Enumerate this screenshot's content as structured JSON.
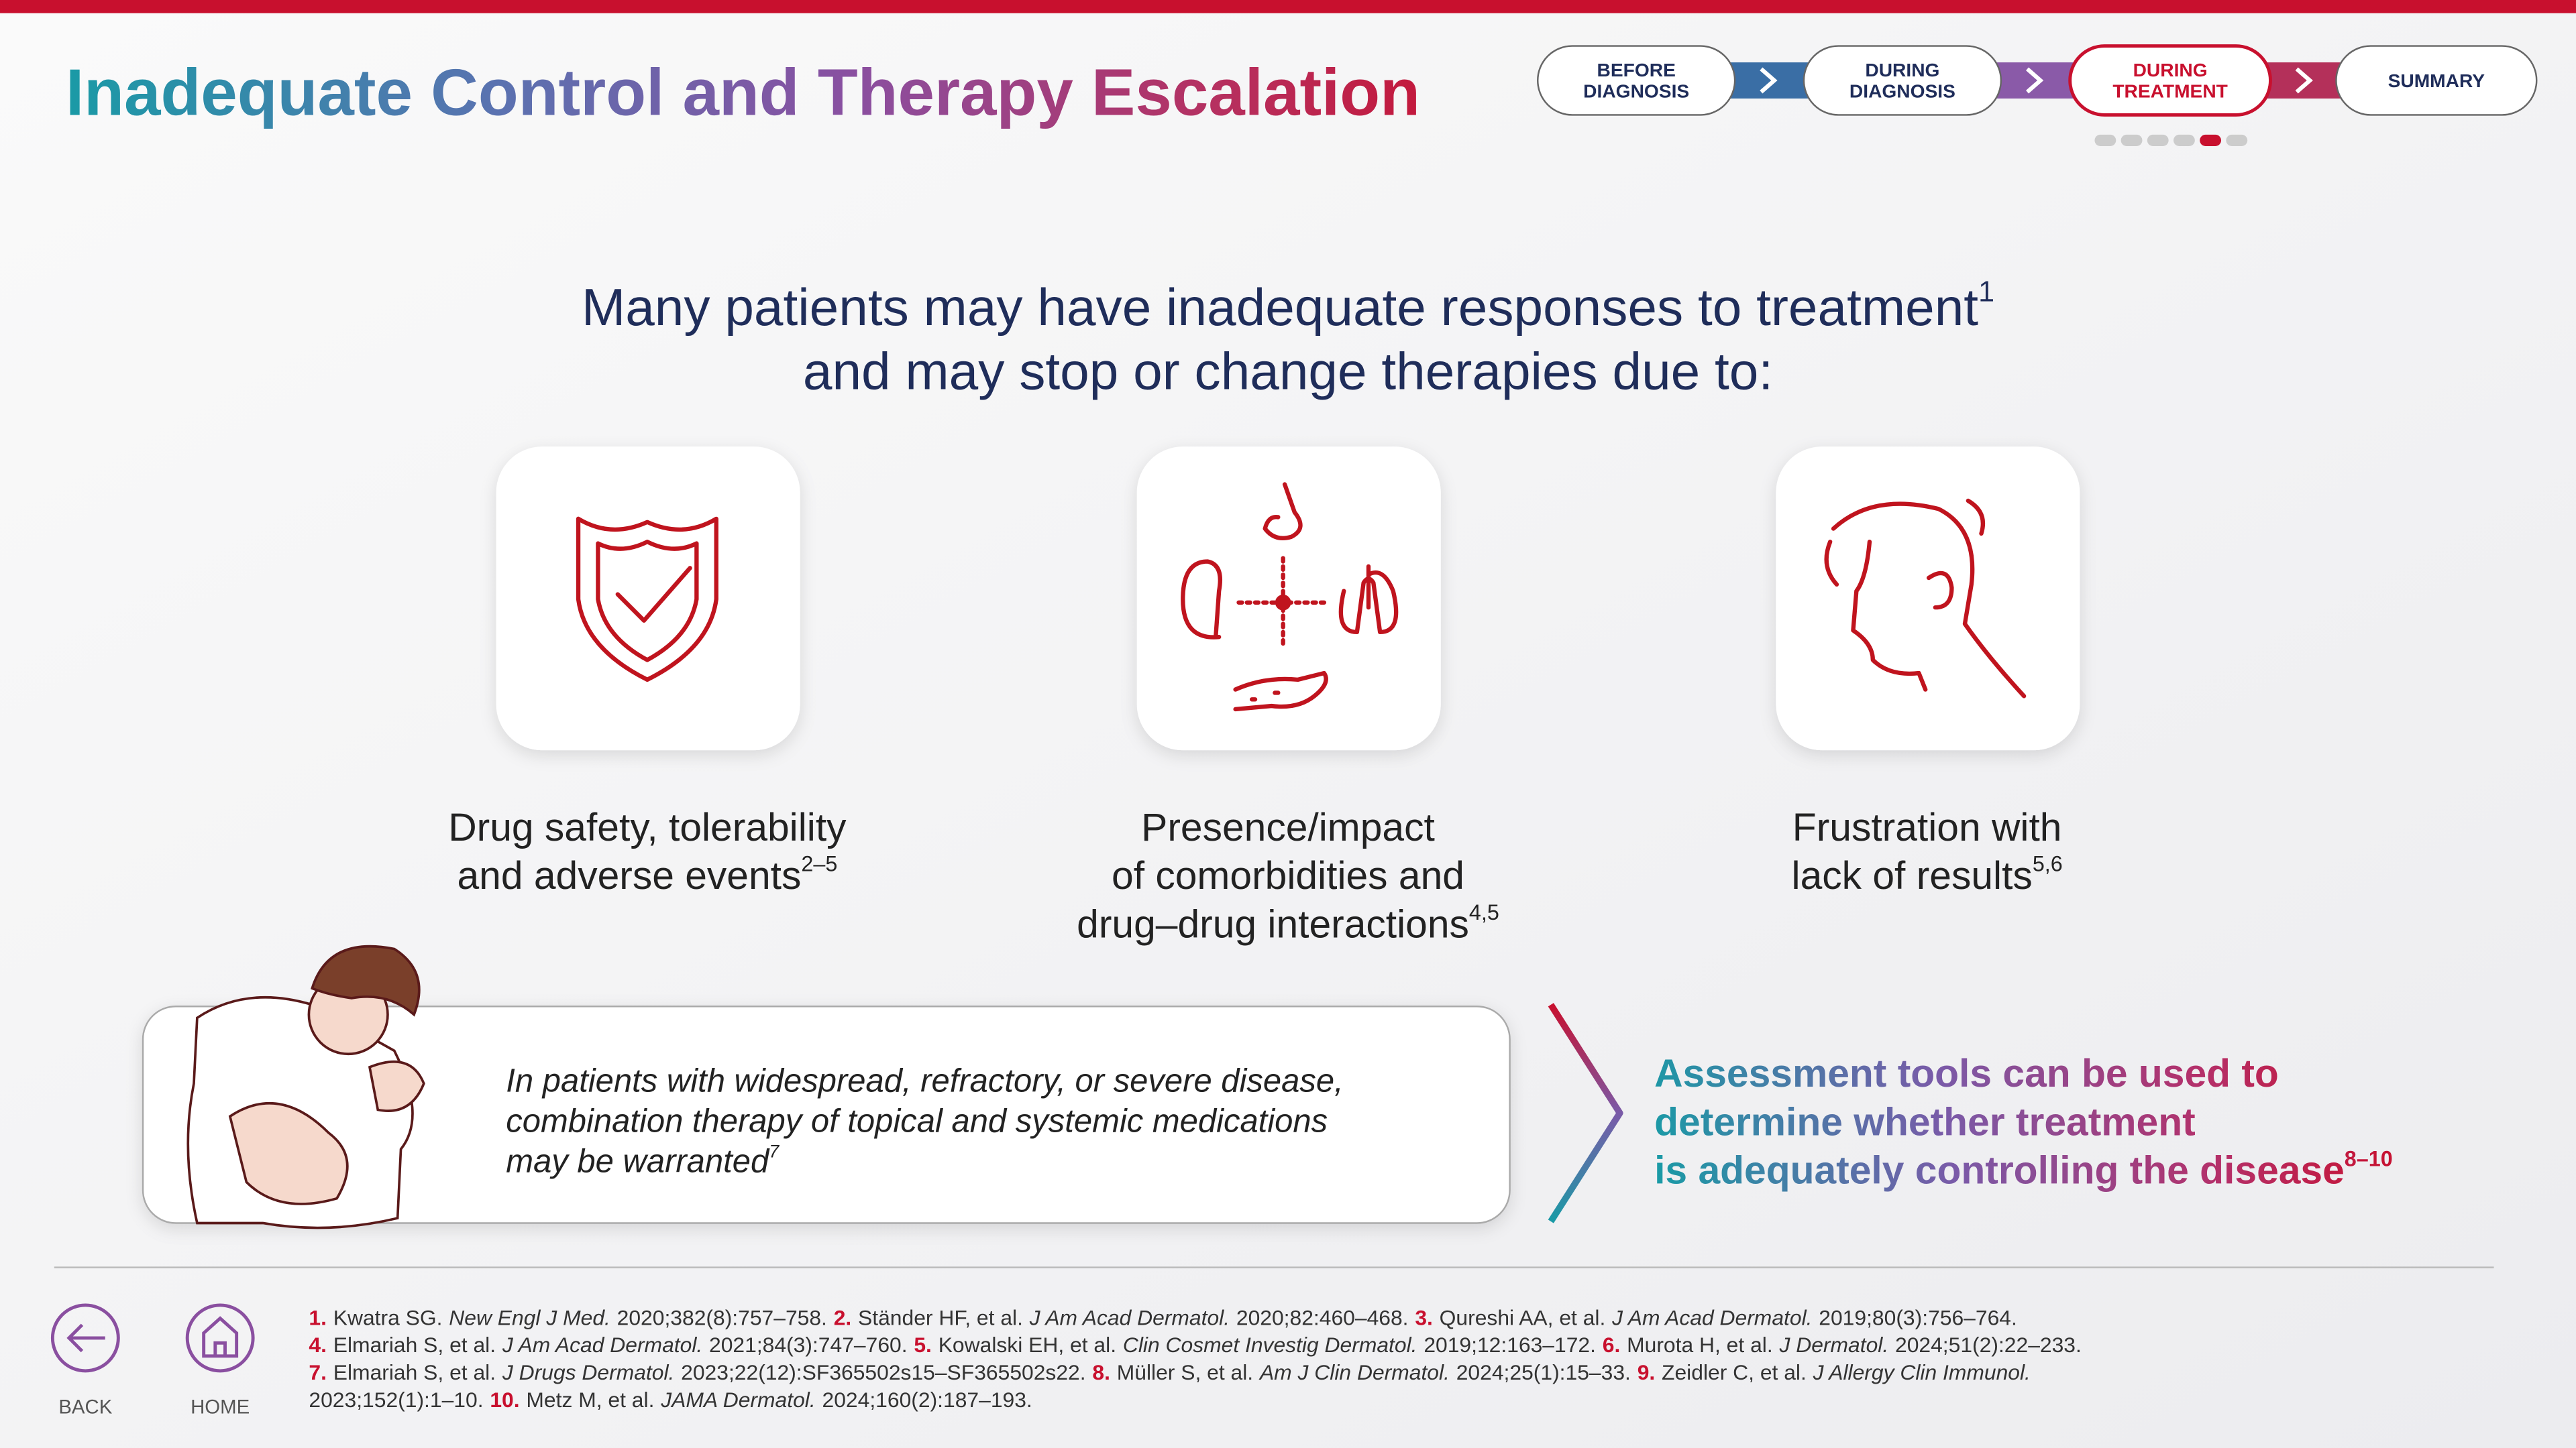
{
  "header": {
    "title": "Inadequate Control and Therapy Escalation"
  },
  "nav": {
    "steps": [
      [
        "BEFORE",
        "DIAGNOSIS"
      ],
      [
        "DURING",
        "DIAGNOSIS"
      ],
      [
        "DURING",
        "TREATMENT"
      ],
      [
        "SUMMARY"
      ]
    ]
  },
  "headline": {
    "lines": [
      "Many patients may have inadequate responses to treatment",
      "and may stop or change therapies due to:"
    ],
    "sup": "1"
  },
  "reasons": [
    {
      "lines": [
        "Drug safety, tolerability",
        "and adverse events"
      ],
      "sup": "2–5"
    },
    {
      "lines": [
        "Presence/impact",
        "of comorbidities and",
        "drug–drug interactions"
      ],
      "sup": "4,5"
    },
    {
      "lines": [
        "Frustration with",
        "lack of results"
      ],
      "sup": "5,6"
    }
  ],
  "callout": {
    "lines": [
      "In patients with widespread, refractory, or severe disease,",
      "combination therapy of topical and systemic medications",
      "may be warranted"
    ],
    "sup": "7"
  },
  "assessment": {
    "lines": [
      "Assessment tools can be used to",
      "determine whether treatment",
      "is adequately controlling the disease"
    ],
    "sup": "8–10"
  },
  "references": [
    {
      "number": "1.",
      "authors": "Kwatra SG.",
      "journal": "New Engl J Med.",
      "citation": "2020;382(8):757–758."
    },
    {
      "number": "2.",
      "authors": "Ständer HF, et al.",
      "journal": "J Am Acad Dermatol.",
      "citation": "2020;82:460–468."
    },
    {
      "number": "3.",
      "authors": "Qureshi AA, et al.",
      "journal": "J Am Acad Dermatol.",
      "citation": "2019;80(3):756–764."
    },
    {
      "number": "4.",
      "authors": "Elmariah S, et al.",
      "journal": "J Am Acad Dermatol.",
      "citation": "2021;84(3):747–760."
    },
    {
      "number": "5.",
      "authors": "Kowalski EH, et al.",
      "journal": "Clin Cosmet Investig Dermatol.",
      "citation": "2019;12:163–172."
    },
    {
      "number": "6.",
      "authors": "Murota H, et al.",
      "journal": "J Dermatol.",
      "citation": "2024;51(2):22–233."
    },
    {
      "number": "7.",
      "authors": "Elmariah S, et al.",
      "journal": "J Drugs Dermatol.",
      "citation": "2023;22(12):SF365502s15–SF365502s22."
    },
    {
      "number": "8.",
      "authors": "Müller S, et al.",
      "journal": "Am J Clin Dermatol.",
      "citation": "2024;25(1):15–33."
    },
    {
      "number": "9.",
      "authors": "Zeidler C, et al.",
      "journal": "J Allergy Clin Immunol.",
      "citation": "2023;152(1):1–10."
    },
    {
      "number": "10.",
      "authors": "Metz M, et al.",
      "journal": "JAMA Dermatol.",
      "citation": "2024;160(2):187–193."
    }
  ],
  "footer": {
    "back": "BACK",
    "home": "HOME"
  }
}
